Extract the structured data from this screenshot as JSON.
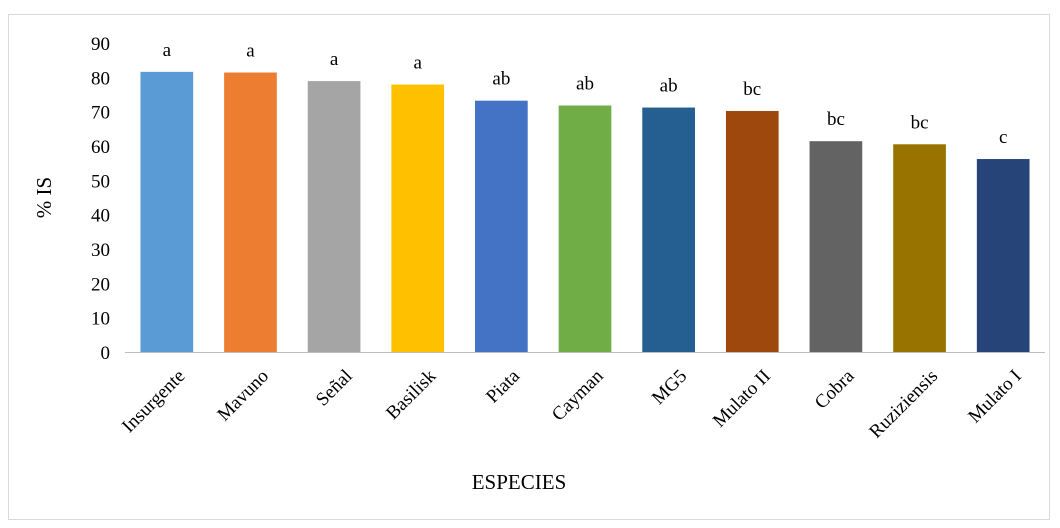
{
  "chart_data": {
    "type": "bar",
    "title": "",
    "xlabel": "ESPECIES",
    "ylabel": "% IS",
    "ylim": [
      0,
      90
    ],
    "yticks": [
      0,
      10,
      20,
      30,
      40,
      50,
      60,
      70,
      80,
      90
    ],
    "grid": false,
    "categories": [
      "Insurgente",
      "Mavuno",
      "Señal",
      "Basilisk",
      "Piata",
      "Cayman",
      "MG5",
      "Mulato II",
      "Cobra",
      "Ruziziensis",
      "Mulato I"
    ],
    "values": [
      81.6,
      81.4,
      78.9,
      77.9,
      73.2,
      71.8,
      71.2,
      70.2,
      61.4,
      60.5,
      56.2
    ],
    "significance_letters": [
      "a",
      "a",
      "a",
      "a",
      "ab",
      "ab",
      "ab",
      "bc",
      "bc",
      "bc",
      "c"
    ],
    "colors": [
      "#5b9bd5",
      "#ed7d31",
      "#a5a5a5",
      "#ffc000",
      "#4472c4",
      "#70ad47",
      "#255e91",
      "#9e480e",
      "#636363",
      "#997300",
      "#264478"
    ]
  }
}
